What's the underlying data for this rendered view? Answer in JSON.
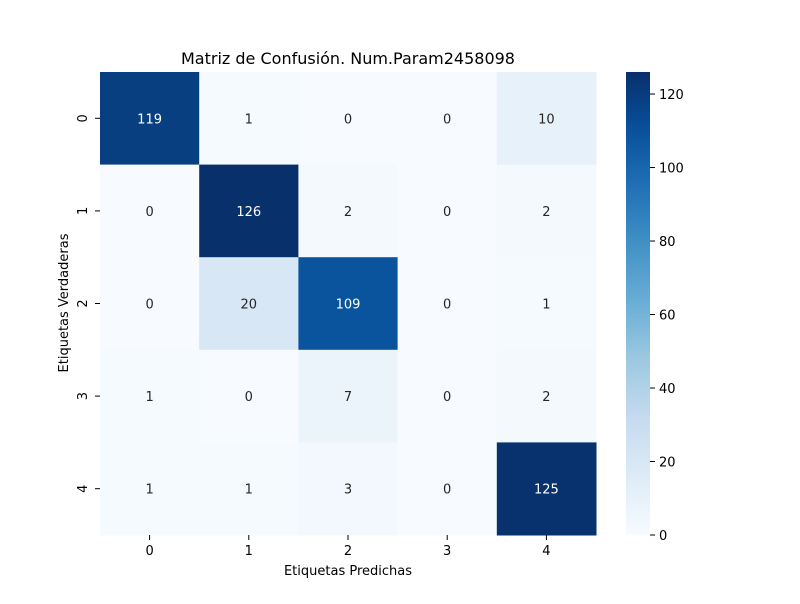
{
  "chart_data": {
    "type": "heatmap",
    "title": "Matriz de Confusión. Num.Param2458098",
    "xlabel": "Etiquetas Predichas",
    "ylabel": "Etiquetas Verdaderas",
    "x_categories": [
      "0",
      "1",
      "2",
      "3",
      "4"
    ],
    "y_categories": [
      "0",
      "1",
      "2",
      "3",
      "4"
    ],
    "values": [
      [
        119,
        1,
        0,
        0,
        10
      ],
      [
        0,
        126,
        2,
        0,
        2
      ],
      [
        0,
        20,
        109,
        0,
        1
      ],
      [
        1,
        0,
        7,
        0,
        2
      ],
      [
        1,
        1,
        3,
        0,
        125
      ]
    ],
    "colorbar": {
      "min": 0,
      "max": 126,
      "ticks": [
        0,
        20,
        40,
        60,
        80,
        100,
        120
      ],
      "colormap": "Blues"
    },
    "colors": {
      "low": "#f7fbff",
      "high": "#08306b",
      "text_light": "#ffffff",
      "text_dark": "#262626"
    }
  }
}
